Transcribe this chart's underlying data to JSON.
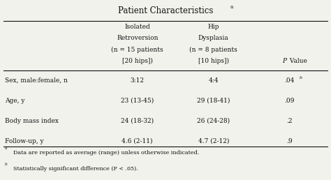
{
  "title": "Patient Characteristics",
  "title_superscript": "a",
  "col_headers_1": [
    "Isolated",
    "Retroversion",
    "(n = 15 patients",
    "[20 hips])"
  ],
  "col_headers_2": [
    "Hip",
    "Dysplasia",
    "(n = 8 patients",
    "[10 hips])"
  ],
  "p_value_label": [
    "P",
    " Value"
  ],
  "row_labels": [
    "Sex, male:female, n",
    "Age, y",
    "Body mass index",
    "Follow-up, y"
  ],
  "col1_data": [
    "3:12",
    "23 (13-45)",
    "24 (18-32)",
    "4.6 (2-11)"
  ],
  "col2_data": [
    "4:4",
    "29 (18-41)",
    "26 (24-28)",
    "4.7 (2-12)"
  ],
  "col3_data": [
    ".04",
    ".09",
    ".2",
    ".9"
  ],
  "col3_superscript": [
    "b",
    "",
    "",
    ""
  ],
  "footnotes": [
    "Data are reported as average (range) unless otherwise indicated.",
    "Statistically significant difference (P < .05)."
  ],
  "footnote_labels": [
    "a",
    "b"
  ],
  "bg_color": "#f2f2ed",
  "text_color": "#111111",
  "line_color": "#111111"
}
